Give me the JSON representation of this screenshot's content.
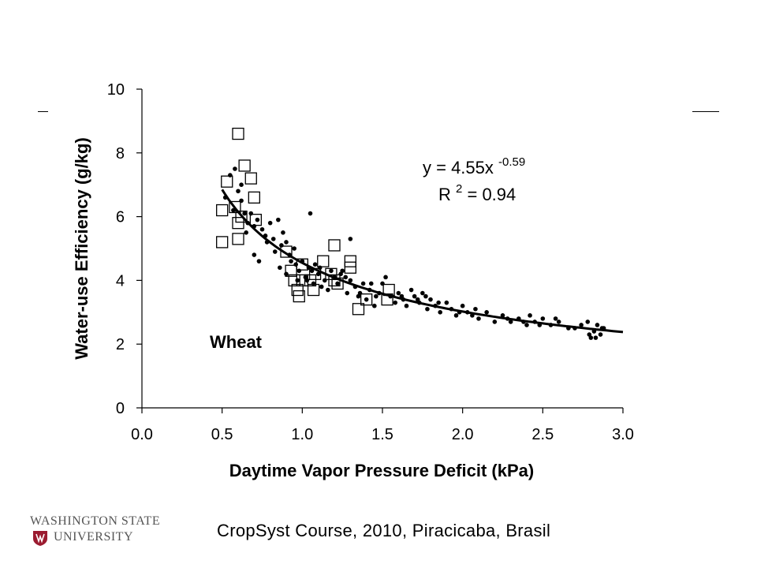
{
  "chart_data": {
    "type": "scatter",
    "title": "",
    "xlabel": "Daytime Vapor Pressure Deficit (kPa)",
    "ylabel": "Water-use Efficiency (g/kg)",
    "xlim": [
      0.0,
      3.0
    ],
    "ylim": [
      0,
      10
    ],
    "xticks": [
      "0.0",
      "0.5",
      "1.0",
      "1.5",
      "2.0",
      "2.5",
      "3.0"
    ],
    "yticks": [
      "0",
      "2",
      "4",
      "6",
      "8",
      "10"
    ],
    "grid": false,
    "legend": "none",
    "label": "Wheat",
    "equation": {
      "prefix": "y = 4.55x",
      "exponent": "-0.59"
    },
    "r_squared": {
      "prefix": "R",
      "exponent": "2",
      "suffix": " = 0.94"
    },
    "fit": {
      "type": "power",
      "a": 4.55,
      "b": -0.59,
      "x_range": [
        0.5,
        3.0
      ]
    },
    "series": [
      {
        "marker": "dot",
        "points": [
          [
            0.55,
            7.3
          ],
          [
            0.58,
            7.5
          ],
          [
            0.6,
            6.8
          ],
          [
            0.62,
            7.0
          ],
          [
            0.62,
            6.5
          ],
          [
            0.64,
            6.1
          ],
          [
            0.66,
            5.8
          ],
          [
            0.68,
            6.1
          ],
          [
            0.7,
            5.7
          ],
          [
            0.72,
            5.9
          ],
          [
            0.75,
            5.6
          ],
          [
            0.77,
            5.4
          ],
          [
            0.8,
            5.8
          ],
          [
            0.82,
            5.3
          ],
          [
            0.85,
            5.9
          ],
          [
            0.87,
            5.1
          ],
          [
            0.88,
            5.5
          ],
          [
            0.9,
            5.2
          ],
          [
            0.92,
            4.8
          ],
          [
            0.95,
            5.0
          ],
          [
            0.96,
            4.5
          ],
          [
            0.98,
            4.3
          ],
          [
            1.0,
            4.6
          ],
          [
            1.02,
            4.1
          ],
          [
            1.04,
            4.4
          ],
          [
            1.05,
            6.1
          ],
          [
            1.07,
            3.9
          ],
          [
            1.08,
            4.5
          ],
          [
            1.1,
            4.2
          ],
          [
            1.12,
            3.8
          ],
          [
            1.14,
            4.0
          ],
          [
            1.16,
            3.7
          ],
          [
            1.2,
            4.1
          ],
          [
            1.22,
            3.9
          ],
          [
            1.25,
            4.3
          ],
          [
            1.28,
            3.6
          ],
          [
            1.3,
            4.0
          ],
          [
            1.3,
            5.3
          ],
          [
            1.33,
            3.8
          ],
          [
            1.35,
            3.5
          ],
          [
            1.38,
            3.9
          ],
          [
            1.4,
            3.4
          ],
          [
            1.42,
            3.7
          ],
          [
            1.45,
            3.2
          ],
          [
            1.48,
            3.6
          ],
          [
            1.5,
            3.9
          ],
          [
            1.52,
            4.1
          ],
          [
            1.55,
            3.5
          ],
          [
            1.58,
            3.3
          ],
          [
            1.6,
            3.6
          ],
          [
            1.63,
            3.4
          ],
          [
            1.65,
            3.2
          ],
          [
            1.68,
            3.7
          ],
          [
            1.7,
            3.5
          ],
          [
            1.73,
            3.3
          ],
          [
            1.75,
            3.6
          ],
          [
            1.78,
            3.1
          ],
          [
            1.8,
            3.4
          ],
          [
            1.83,
            3.2
          ],
          [
            1.86,
            3.0
          ],
          [
            1.9,
            3.3
          ],
          [
            1.93,
            3.1
          ],
          [
            1.96,
            2.9
          ],
          [
            2.0,
            3.2
          ],
          [
            2.03,
            3.0
          ],
          [
            2.06,
            2.9
          ],
          [
            2.1,
            2.8
          ],
          [
            2.15,
            3.0
          ],
          [
            2.2,
            2.7
          ],
          [
            2.25,
            2.9
          ],
          [
            2.3,
            2.7
          ],
          [
            2.35,
            2.8
          ],
          [
            2.4,
            2.6
          ],
          [
            2.42,
            2.9
          ],
          [
            2.45,
            2.7
          ],
          [
            2.5,
            2.8
          ],
          [
            2.55,
            2.6
          ],
          [
            2.6,
            2.7
          ],
          [
            2.7,
            2.5
          ],
          [
            2.78,
            2.7
          ],
          [
            2.8,
            2.2
          ],
          [
            2.82,
            2.4
          ],
          [
            2.84,
            2.6
          ],
          [
            2.86,
            2.3
          ],
          [
            2.88,
            2.5
          ],
          [
            0.52,
            6.6
          ],
          [
            0.57,
            6.2
          ],
          [
            0.65,
            5.5
          ],
          [
            0.7,
            4.8
          ],
          [
            0.73,
            4.6
          ],
          [
            0.78,
            5.2
          ],
          [
            0.83,
            4.9
          ],
          [
            0.86,
            4.4
          ],
          [
            0.9,
            4.2
          ],
          [
            0.93,
            4.6
          ],
          [
            0.97,
            4.0
          ],
          [
            1.03,
            4.0
          ],
          [
            1.06,
            4.3
          ],
          [
            1.11,
            4.4
          ],
          [
            1.18,
            4.3
          ],
          [
            1.24,
            4.2
          ],
          [
            1.27,
            4.1
          ],
          [
            1.36,
            3.6
          ],
          [
            1.43,
            3.9
          ],
          [
            1.46,
            3.5
          ],
          [
            1.62,
            3.5
          ],
          [
            1.72,
            3.4
          ],
          [
            1.77,
            3.5
          ],
          [
            1.85,
            3.3
          ],
          [
            1.98,
            3.0
          ],
          [
            2.08,
            3.1
          ],
          [
            2.28,
            2.8
          ],
          [
            2.38,
            2.7
          ],
          [
            2.48,
            2.6
          ],
          [
            2.58,
            2.8
          ],
          [
            2.66,
            2.5
          ],
          [
            2.74,
            2.6
          ],
          [
            2.79,
            2.3
          ],
          [
            2.83,
            2.2
          ],
          [
            2.87,
            2.5
          ]
        ]
      },
      {
        "marker": "open-square",
        "points": [
          [
            0.6,
            8.6
          ],
          [
            0.64,
            7.6
          ],
          [
            0.68,
            7.2
          ],
          [
            0.53,
            7.1
          ],
          [
            0.7,
            6.6
          ],
          [
            0.5,
            6.2
          ],
          [
            0.58,
            6.3
          ],
          [
            0.62,
            6.0
          ],
          [
            0.71,
            5.9
          ],
          [
            0.6,
            5.8
          ],
          [
            0.5,
            5.2
          ],
          [
            0.6,
            5.3
          ],
          [
            0.9,
            4.9
          ],
          [
            1.2,
            5.1
          ],
          [
            1.13,
            4.6
          ],
          [
            1.3,
            4.6
          ],
          [
            1.3,
            4.4
          ],
          [
            1.0,
            4.5
          ],
          [
            1.05,
            4.0
          ],
          [
            0.95,
            4.0
          ],
          [
            1.0,
            4.0
          ],
          [
            1.08,
            4.2
          ],
          [
            1.18,
            4.2
          ],
          [
            1.22,
            3.9
          ],
          [
            0.98,
            3.5
          ],
          [
            1.07,
            3.7
          ],
          [
            0.97,
            3.7
          ],
          [
            1.35,
            3.1
          ],
          [
            1.4,
            3.4
          ],
          [
            1.54,
            3.7
          ],
          [
            1.53,
            3.4
          ],
          [
            0.93,
            4.3
          ],
          [
            1.2,
            4.0
          ]
        ]
      }
    ]
  },
  "footer": {
    "text": "CropSyst Course, 2010, Piracicaba, Brasil"
  },
  "logo": {
    "line1": "WASHINGTON STATE",
    "line2": "UNIVERSITY",
    "color": "#9B1B30"
  }
}
